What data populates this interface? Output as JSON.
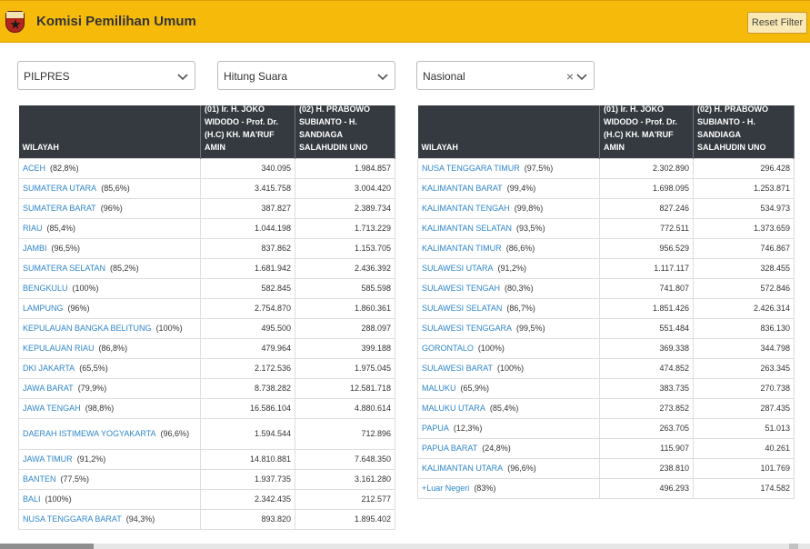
{
  "header": {
    "title": "Komisi Pemilihan Umum",
    "reset_label": "Reset Filter",
    "logo_icon": "kpu-logo"
  },
  "filters": {
    "election": "PILPRES",
    "count_type": "Hitung Suara",
    "region": "Nasional",
    "clear_symbol": "×"
  },
  "table_headers": {
    "wilayah": "WILAYAH",
    "cand1": "(01) Ir. H. JOKO WIDODO - Prof. Dr. (H.C) KH. MA'RUF AMIN",
    "cand2": "(02) H. PRABOWO SUBIANTO - H. SANDIAGA SALAHUDIN UNO"
  },
  "left_rows": [
    {
      "name": "ACEH",
      "pct": "(82,8%)",
      "v1": "340.095",
      "v2": "1.984.857"
    },
    {
      "name": "SUMATERA UTARA",
      "pct": "(85,6%)",
      "v1": "3.415.758",
      "v2": "3.004.420"
    },
    {
      "name": "SUMATERA BARAT",
      "pct": "(96%)",
      "v1": "387.827",
      "v2": "2.389.734"
    },
    {
      "name": "RIAU",
      "pct": "(85,4%)",
      "v1": "1.044.198",
      "v2": "1.713.229"
    },
    {
      "name": "JAMBI",
      "pct": "(96,5%)",
      "v1": "837.862",
      "v2": "1.153.705"
    },
    {
      "name": "SUMATERA SELATAN",
      "pct": "(85,2%)",
      "v1": "1.681.942",
      "v2": "2.436.392"
    },
    {
      "name": "BENGKULU",
      "pct": "(100%)",
      "v1": "582.845",
      "v2": "585.598"
    },
    {
      "name": "LAMPUNG",
      "pct": "(96%)",
      "v1": "2.754.870",
      "v2": "1.860.361"
    },
    {
      "name": "KEPULAUAN BANGKA BELITUNG",
      "pct": "(100%)",
      "v1": "495.500",
      "v2": "288.097"
    },
    {
      "name": "KEPULAUAN RIAU",
      "pct": "(86,8%)",
      "v1": "479.964",
      "v2": "399.188"
    },
    {
      "name": "DKI JAKARTA",
      "pct": "(65,5%)",
      "v1": "2.172.536",
      "v2": "1.975.045"
    },
    {
      "name": "JAWA BARAT",
      "pct": "(79,9%)",
      "v1": "8.738.282",
      "v2": "12.581.718"
    },
    {
      "name": "JAWA TENGAH",
      "pct": "(98,8%)",
      "v1": "16.586.104",
      "v2": "4.880.614"
    },
    {
      "name": "DAERAH ISTIMEWA YOGYAKARTA",
      "pct": "(96,6%)",
      "v1": "1.594.544",
      "v2": "712.896",
      "tall": true
    },
    {
      "name": "JAWA TIMUR",
      "pct": "(91,2%)",
      "v1": "14.810.881",
      "v2": "7.648.350"
    },
    {
      "name": "BANTEN",
      "pct": "(77,5%)",
      "v1": "1.937.735",
      "v2": "3.161.280"
    },
    {
      "name": "BALI",
      "pct": "(100%)",
      "v1": "2.342.435",
      "v2": "212.577"
    },
    {
      "name": "NUSA TENGGARA BARAT",
      "pct": "(94,3%)",
      "v1": "893.820",
      "v2": "1.895.402"
    }
  ],
  "right_rows": [
    {
      "name": "NUSA TENGGARA TIMUR",
      "pct": "(97,5%)",
      "v1": "2.302.890",
      "v2": "296.428"
    },
    {
      "name": "KALIMANTAN BARAT",
      "pct": "(99,4%)",
      "v1": "1.698.095",
      "v2": "1.253.871"
    },
    {
      "name": "KALIMANTAN TENGAH",
      "pct": "(99,8%)",
      "v1": "827.246",
      "v2": "534.973"
    },
    {
      "name": "KALIMANTAN SELATAN",
      "pct": "(93,5%)",
      "v1": "772.511",
      "v2": "1.373.659"
    },
    {
      "name": "KALIMANTAN TIMUR",
      "pct": "(86,6%)",
      "v1": "956.529",
      "v2": "746.867"
    },
    {
      "name": "SULAWESI UTARA",
      "pct": "(91,2%)",
      "v1": "1.117.117",
      "v2": "328.455"
    },
    {
      "name": "SULAWESI TENGAH",
      "pct": "(80,3%)",
      "v1": "741.807",
      "v2": "572.846"
    },
    {
      "name": "SULAWESI SELATAN",
      "pct": "(86,7%)",
      "v1": "1.851.426",
      "v2": "2.426.314"
    },
    {
      "name": "SULAWESI TENGGARA",
      "pct": "(99,5%)",
      "v1": "551.484",
      "v2": "836.130"
    },
    {
      "name": "GORONTALO",
      "pct": "(100%)",
      "v1": "369.338",
      "v2": "344.798"
    },
    {
      "name": "SULAWESI BARAT",
      "pct": "(100%)",
      "v1": "474.852",
      "v2": "263.345"
    },
    {
      "name": "MALUKU",
      "pct": "(65,9%)",
      "v1": "383.735",
      "v2": "270.738"
    },
    {
      "name": "MALUKU UTARA",
      "pct": "(85,4%)",
      "v1": "273.852",
      "v2": "287.435"
    },
    {
      "name": "PAPUA",
      "pct": "(12,3%)",
      "v1": "263.705",
      "v2": "51.013"
    },
    {
      "name": "PAPUA BARAT",
      "pct": "(24,8%)",
      "v1": "115.907",
      "v2": "40.261"
    },
    {
      "name": "KALIMANTAN UTARA",
      "pct": "(96,6%)",
      "v1": "238.810",
      "v2": "101.769"
    },
    {
      "name": "+Luar Negeri",
      "pct": "(83%)",
      "v1": "496.293",
      "v2": "174.582"
    }
  ]
}
